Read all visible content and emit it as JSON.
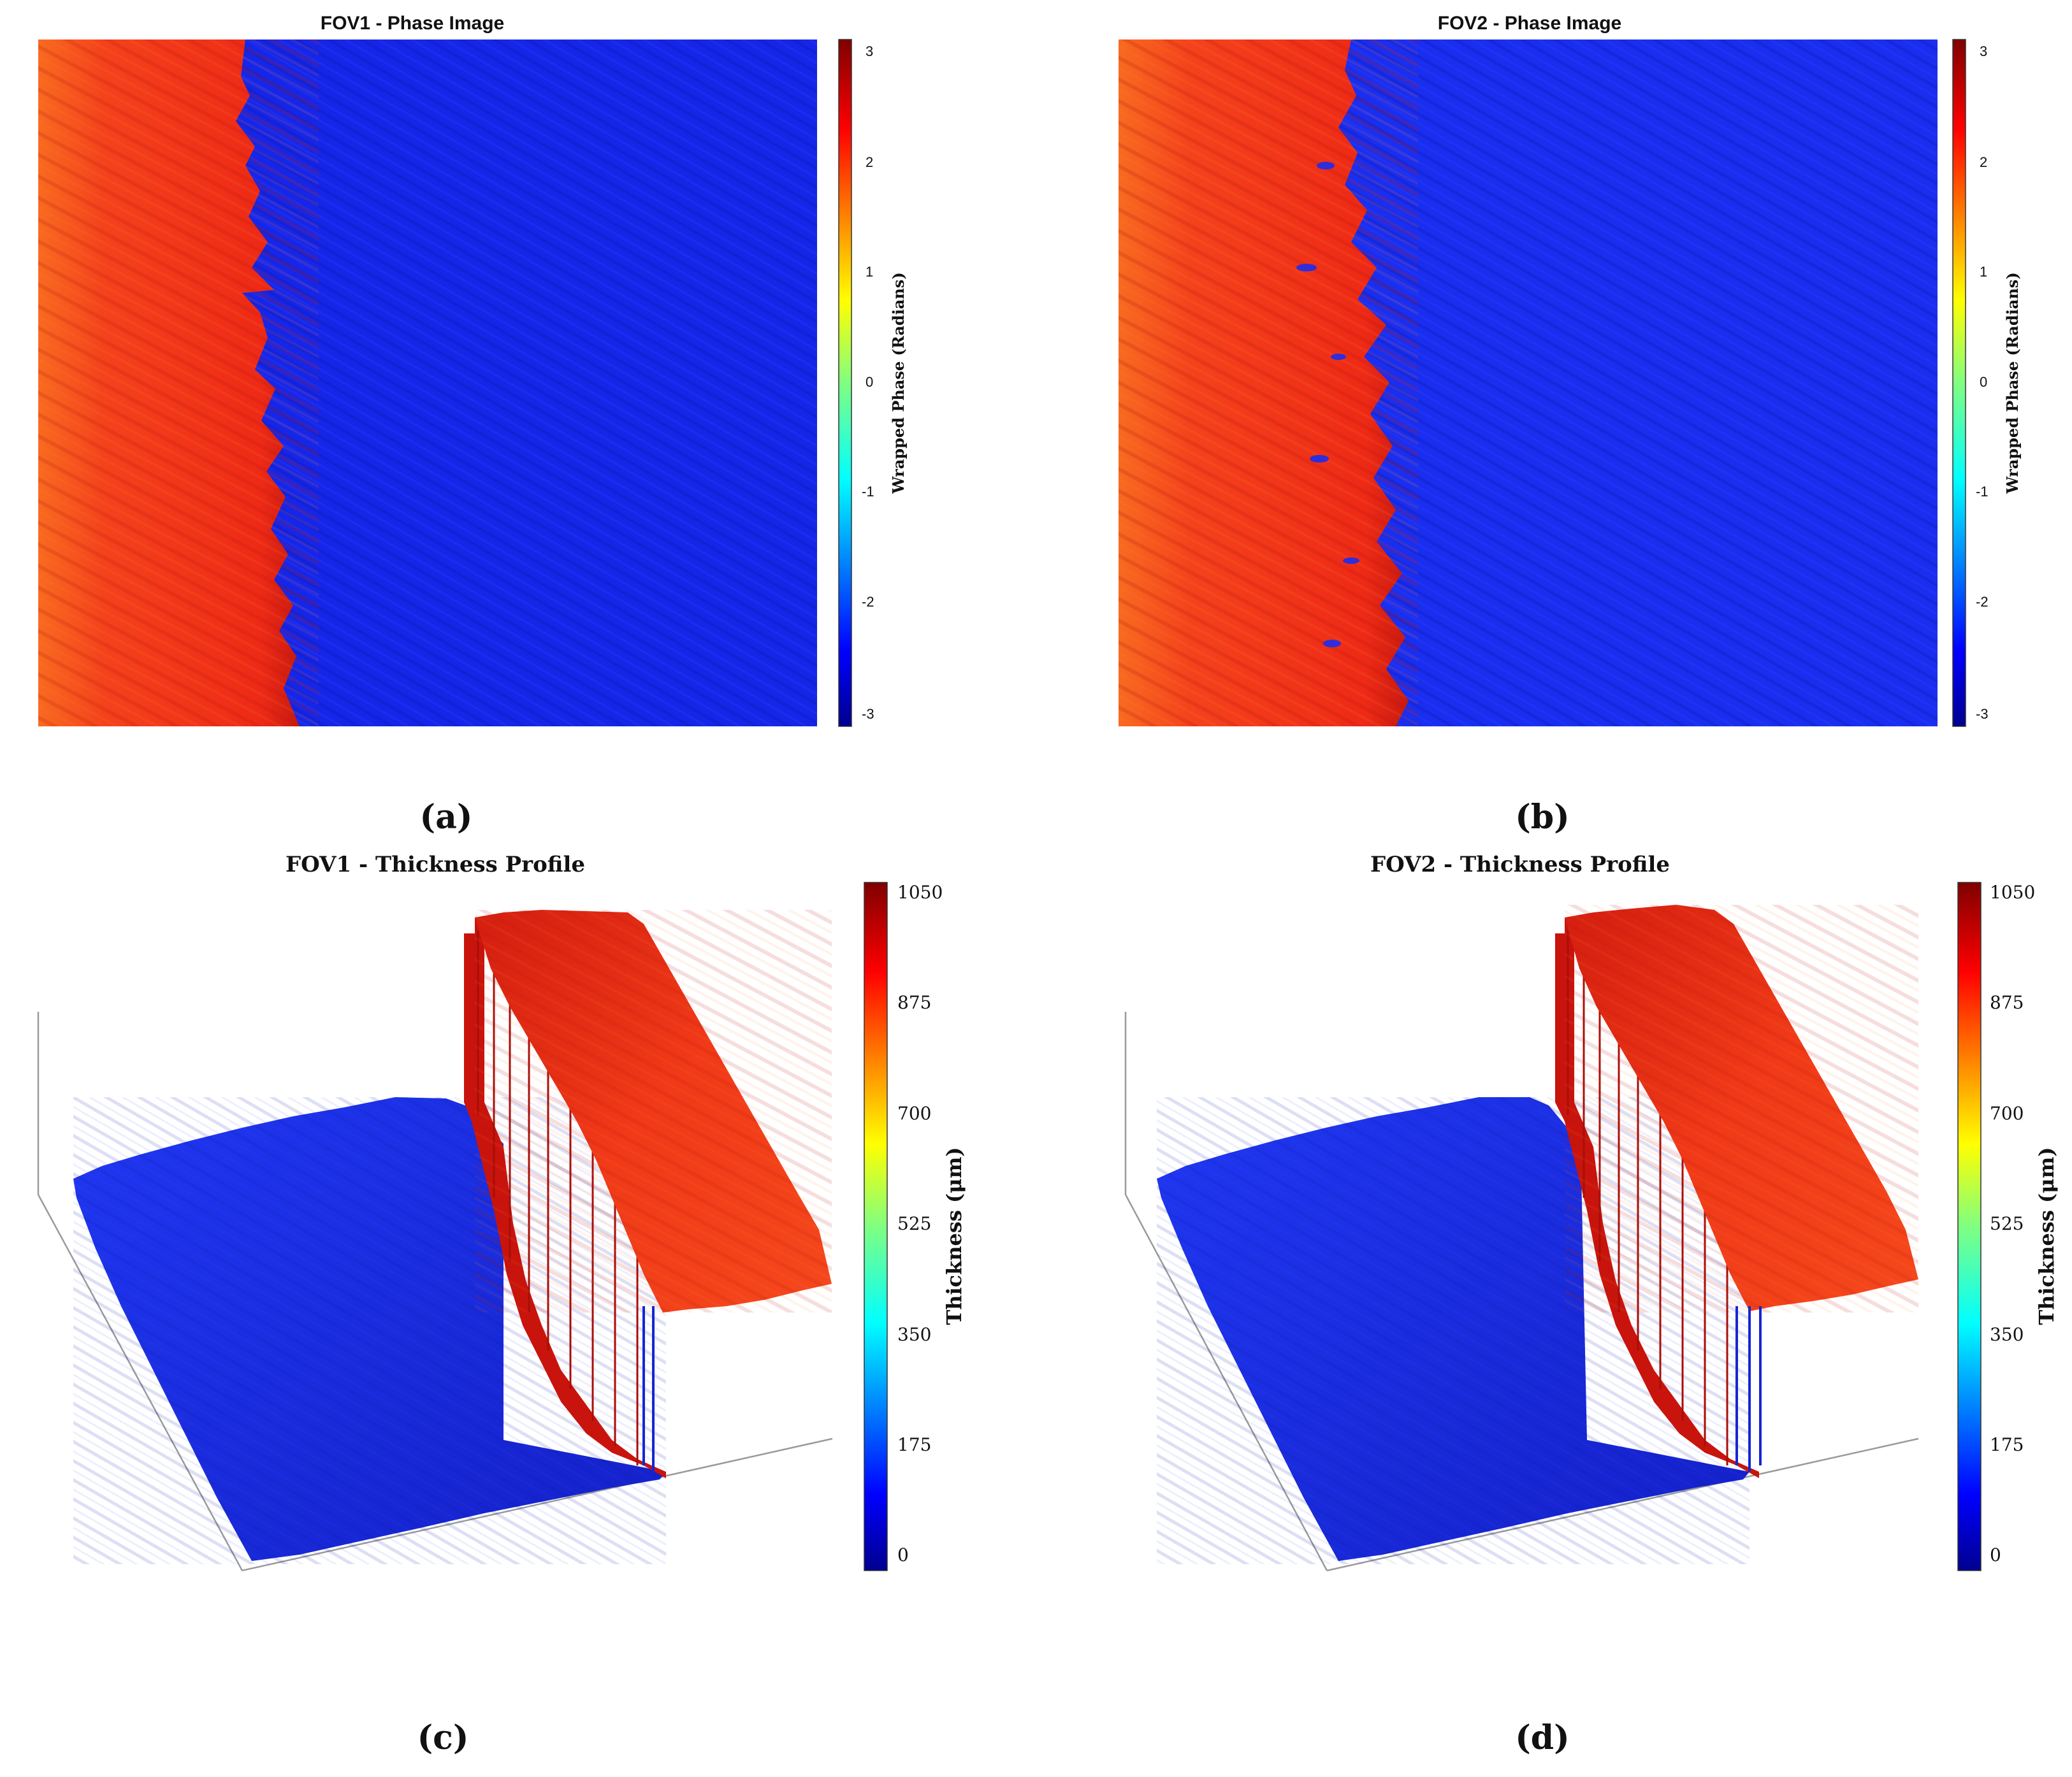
{
  "chart_data": [
    {
      "type": "heatmap",
      "panel_label": "(a)",
      "title": "FOV1 - Phase Image",
      "colorbar": {
        "label": "Wrapped Phase (Radians)",
        "ticks": [
          "3",
          "2",
          "1",
          "0",
          "-1",
          "-2",
          "-3"
        ],
        "range": [
          -3.1416,
          3.1416
        ],
        "colormap": "jet"
      },
      "regions": [
        {
          "name": "left",
          "phase": 2.4,
          "boundary_fraction": 0.32,
          "color": "#f23a1c"
        },
        {
          "name": "right",
          "phase": -2.5,
          "color": "#1626e8"
        }
      ]
    },
    {
      "type": "heatmap",
      "panel_label": "(b)",
      "title": "FOV2 - Phase Image",
      "colorbar": {
        "label": "Wrapped Phase (Radians)",
        "ticks": [
          "3",
          "2",
          "1",
          "0",
          "-1",
          "-2",
          "-3"
        ],
        "range": [
          -3.1416,
          3.1416
        ],
        "colormap": "jet"
      },
      "regions": [
        {
          "name": "left",
          "phase": 2.4,
          "boundary_fraction": 0.33,
          "color": "#f23a1c"
        },
        {
          "name": "right",
          "phase": -2.5,
          "color": "#1a2ef0"
        }
      ]
    },
    {
      "type": "surface",
      "panel_label": "(c)",
      "title": "FOV1 - Thickness Profile",
      "colorbar": {
        "label": "Thickness (μm)",
        "ticks": [
          "1050",
          "875",
          "700",
          "525",
          "350",
          "175",
          "0"
        ],
        "range": [
          0,
          1050
        ],
        "colormap": "jet"
      },
      "regions": [
        {
          "name": "low-plateau",
          "thickness": 60
        },
        {
          "name": "high-plateau",
          "thickness": 990
        }
      ]
    },
    {
      "type": "surface",
      "panel_label": "(d)",
      "title": "FOV2 - Thickness Profile",
      "colorbar": {
        "label": "Thickness (μm)",
        "ticks": [
          "1050",
          "875",
          "700",
          "525",
          "350",
          "175",
          "0"
        ],
        "range": [
          0,
          1050
        ],
        "colormap": "jet"
      },
      "regions": [
        {
          "name": "low-plateau",
          "thickness": 60
        },
        {
          "name": "high-plateau",
          "thickness": 990
        }
      ]
    }
  ],
  "colors": {
    "jet_stops": [
      "#00008f",
      "#0000ff",
      "#00ffff",
      "#80ff80",
      "#ffff00",
      "#ff0000",
      "#800000"
    ],
    "axis_line": "#9a9a9a",
    "surface_low": "#1a28e0",
    "surface_high": "#ee2a14",
    "wall": "#c8140c"
  }
}
